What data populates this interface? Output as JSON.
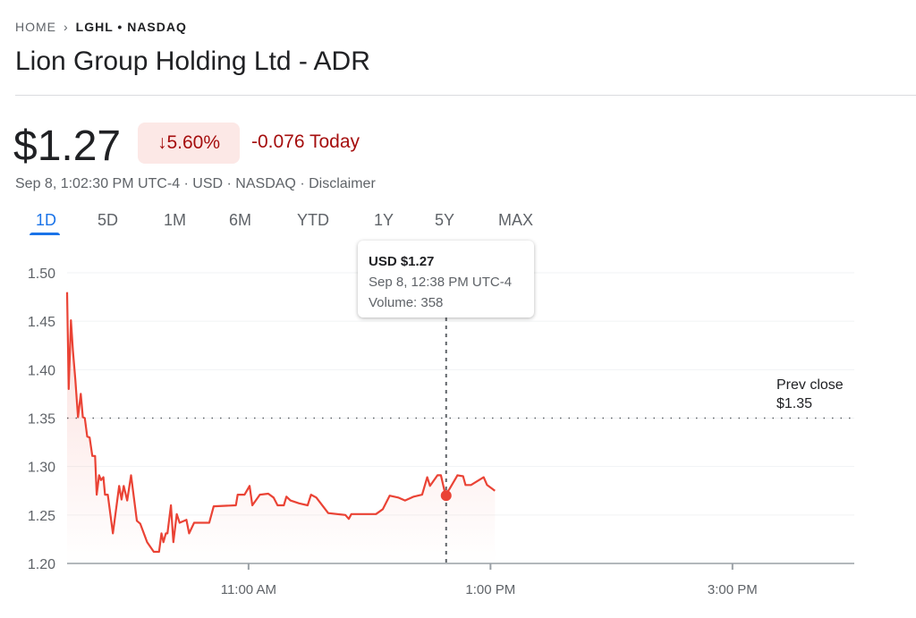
{
  "breadcrumb": {
    "home": "HOME",
    "ticker": "LGHL • NASDAQ"
  },
  "title": "Lion Group Holding Ltd - ADR",
  "price": "$1.27",
  "change_pct": "5.60%",
  "change_abs": "-0.076 Today",
  "subline": "Sep 8, 1:02:30 PM UTC-4 · USD · NASDAQ · Disclaimer",
  "tabs": [
    "1D",
    "5D",
    "1M",
    "6M",
    "YTD",
    "1Y",
    "5Y",
    "MAX"
  ],
  "tooltip": {
    "price": "USD $1.27",
    "time": "Sep 8, 12:38 PM UTC-4",
    "volume": "Volume: 358"
  },
  "prev_close": {
    "label": "Prev close",
    "value": "$1.35"
  },
  "colors": {
    "line": "#ea4335",
    "negative": "#a50e0e",
    "accent": "#1a73e8"
  },
  "chart_data": {
    "type": "line",
    "xlabel": "",
    "ylabel": "",
    "x_unit": "minutes since 9:30 AM",
    "xlim": [
      0,
      390
    ],
    "ylim": [
      1.2,
      1.5
    ],
    "yticks": [
      1.2,
      1.25,
      1.3,
      1.35,
      1.4,
      1.45,
      1.5
    ],
    "ytick_labels": [
      "1.20",
      "1.25",
      "1.30",
      "1.35",
      "1.40",
      "1.45",
      "1.50"
    ],
    "xticks": [
      90,
      210,
      330
    ],
    "xtick_labels": [
      "11:00 AM",
      "1:00 PM",
      "3:00 PM"
    ],
    "prev_close": 1.35,
    "highlight": {
      "x": 188,
      "y": 1.27
    },
    "series": [
      {
        "name": "LGHL",
        "x": [
          0,
          0.8,
          1.9,
          2.9,
          4.1,
          5.4,
          6.8,
          7.8,
          8.8,
          10,
          11.2,
          12.5,
          13.9,
          14.7,
          15.9,
          16.8,
          18,
          18.8,
          20.2,
          22.7,
          25.8,
          27,
          28.1,
          29.8,
          31.7,
          34.6,
          36.3,
          39.7,
          43,
          45.6,
          46.8,
          47.8,
          49,
          49.8,
          51.5,
          52.7,
          54.4,
          55.8,
          59.2,
          60.5,
          63,
          70.5,
          72.7,
          83.7,
          84.6,
          88,
          90.5,
          91.9,
          95.6,
          99.8,
          102.4,
          104.4,
          107.5,
          108.8,
          110.8,
          115.1,
          119.3,
          121,
          123.6,
          129.5,
          138,
          139.7,
          141,
          153.2,
          156.6,
          160,
          164.2,
          167.6,
          171.9,
          176.1,
          178.6,
          180,
          183.7,
          185.4,
          187.6,
          189.7,
          193.6,
          196.4,
          197.6,
          200.3,
          206.6,
          208.3,
          212.2
        ],
        "y": [
          1.48,
          1.38,
          1.451,
          1.42,
          1.39,
          1.351,
          1.375,
          1.351,
          1.35,
          1.331,
          1.33,
          1.311,
          1.311,
          1.271,
          1.291,
          1.286,
          1.289,
          1.271,
          1.271,
          1.231,
          1.28,
          1.266,
          1.28,
          1.265,
          1.291,
          1.244,
          1.241,
          1.222,
          1.212,
          1.212,
          1.231,
          1.222,
          1.231,
          1.231,
          1.26,
          1.222,
          1.251,
          1.242,
          1.245,
          1.231,
          1.242,
          1.242,
          1.259,
          1.26,
          1.271,
          1.271,
          1.28,
          1.26,
          1.271,
          1.272,
          1.268,
          1.26,
          1.26,
          1.269,
          1.265,
          1.262,
          1.26,
          1.271,
          1.268,
          1.252,
          1.25,
          1.246,
          1.251,
          1.251,
          1.256,
          1.27,
          1.268,
          1.265,
          1.269,
          1.271,
          1.289,
          1.28,
          1.291,
          1.291,
          1.271,
          1.277,
          1.291,
          1.29,
          1.281,
          1.281,
          1.289,
          1.281,
          1.275
        ]
      }
    ]
  }
}
